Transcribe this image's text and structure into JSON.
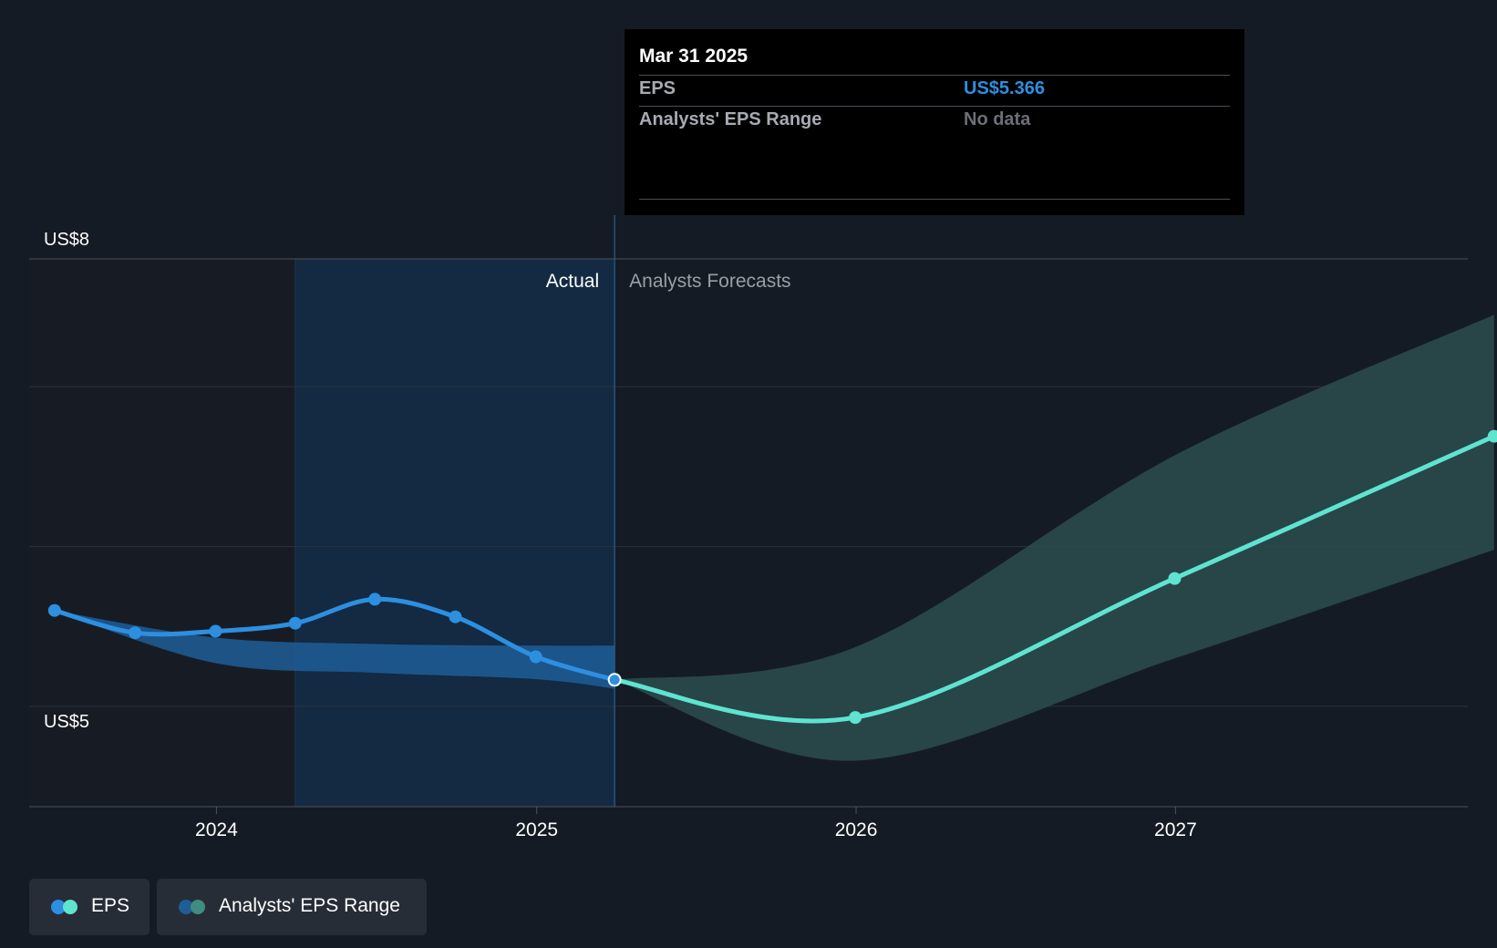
{
  "tooltip": {
    "date": "Mar 31 2025",
    "eps_label": "EPS",
    "eps_value": "US$5.366",
    "range_label": "Analysts' EPS Range",
    "range_value": "No data"
  },
  "legend": {
    "eps": "EPS",
    "range": "Analysts' EPS Range"
  },
  "colors": {
    "background": "#151b24",
    "actual_line": "#2d8fe0",
    "forecast_line": "#5ee4cf",
    "forecast_band": "#2a4a4c",
    "actual_band": "#1f5d96",
    "actual_region": "#132a42"
  },
  "chart_data": {
    "type": "line",
    "y_tick_labels": [
      "US$8",
      "US$5"
    ],
    "ylim": [
      4.8,
      8.0
    ],
    "x_tick_labels": [
      "2024",
      "2025",
      "2026",
      "2027"
    ],
    "xlim": [
      "2023-06-01",
      "2027-12-01"
    ],
    "region_labels": {
      "actual": "Actual",
      "forecast": "Analysts Forecasts"
    },
    "divider_date": "2025-03-31",
    "grid": true,
    "series": [
      {
        "name": "EPS",
        "kind": "actual",
        "points": [
          [
            "2023-06-30",
            5.8
          ],
          [
            "2023-09-30",
            5.66
          ],
          [
            "2023-12-31",
            5.67
          ],
          [
            "2024-03-31",
            5.72
          ],
          [
            "2024-06-30",
            5.87
          ],
          [
            "2024-09-30",
            5.76
          ],
          [
            "2024-12-31",
            5.51
          ],
          [
            "2025-03-31",
            5.366
          ]
        ]
      },
      {
        "name": "EPS",
        "kind": "forecast",
        "points": [
          [
            "2025-03-31",
            5.366
          ],
          [
            "2025-12-31",
            5.13
          ],
          [
            "2026-12-31",
            6.0
          ],
          [
            "2027-12-31",
            6.89
          ]
        ]
      }
    ],
    "ranges": [
      {
        "name": "Analysts' EPS Range",
        "kind": "actual",
        "points": [
          [
            "2023-06-30",
            5.8,
            5.8
          ],
          [
            "2023-12-31",
            5.47,
            5.63
          ],
          [
            "2024-06-30",
            5.41,
            5.59
          ],
          [
            "2024-12-31",
            5.37,
            5.58
          ],
          [
            "2025-03-31",
            5.31,
            5.58
          ]
        ]
      },
      {
        "name": "Analysts' EPS Range",
        "kind": "forecast",
        "points": [
          [
            "2025-03-31",
            5.366,
            5.366
          ],
          [
            "2025-12-31",
            4.86,
            5.57
          ],
          [
            "2026-12-31",
            5.5,
            6.77
          ],
          [
            "2027-12-31",
            6.18,
            7.65
          ]
        ]
      }
    ]
  }
}
